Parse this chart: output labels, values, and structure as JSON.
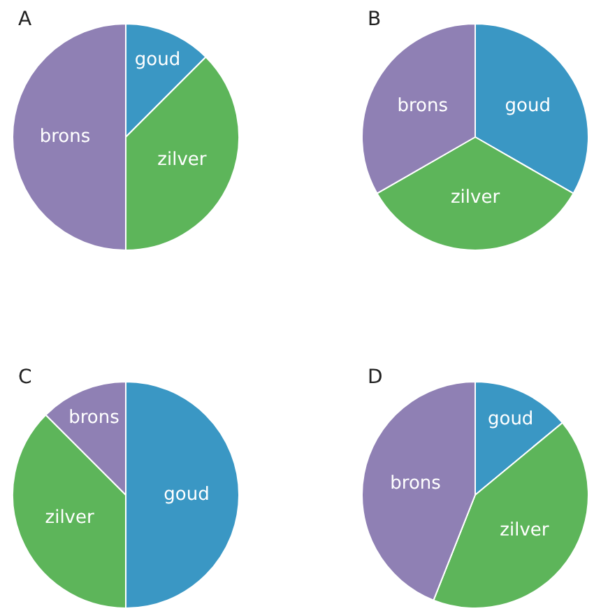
{
  "chart_data": [
    {
      "type": "pie",
      "title": "A",
      "categories": [
        "goud",
        "zilver",
        "brons"
      ],
      "values": [
        12.5,
        37.5,
        50
      ],
      "colors": [
        "#3a97c4",
        "#5db55a",
        "#8f80b4"
      ]
    },
    {
      "type": "pie",
      "title": "B",
      "categories": [
        "goud",
        "zilver",
        "brons"
      ],
      "values": [
        33.3,
        33.4,
        33.3
      ],
      "colors": [
        "#3a97c4",
        "#5db55a",
        "#8f80b4"
      ]
    },
    {
      "type": "pie",
      "title": "C",
      "categories": [
        "goud",
        "zilver",
        "brons"
      ],
      "values": [
        50,
        37.5,
        12.5
      ],
      "colors": [
        "#3a97c4",
        "#5db55a",
        "#8f80b4"
      ]
    },
    {
      "type": "pie",
      "title": "D",
      "categories": [
        "goud",
        "zilver",
        "brons"
      ],
      "values": [
        14,
        42,
        44
      ],
      "colors": [
        "#3a97c4",
        "#5db55a",
        "#8f80b4"
      ]
    }
  ]
}
